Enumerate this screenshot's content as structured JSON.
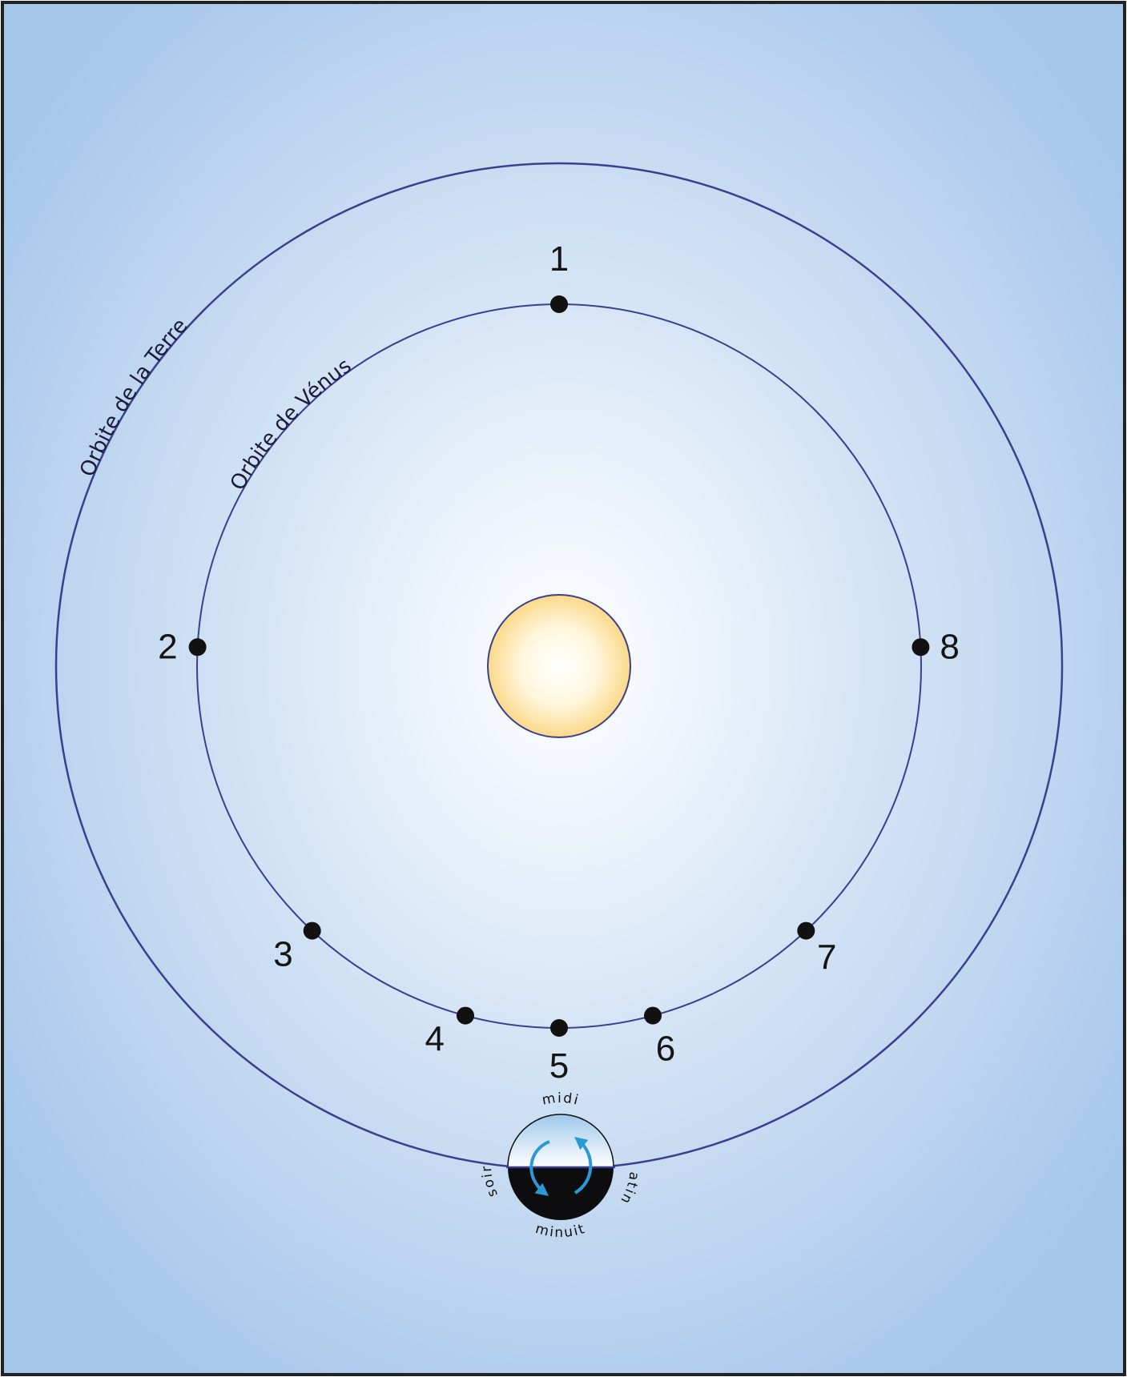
{
  "orbits": {
    "earth_label": "Orbite de la Terre",
    "venus_label": "Orbite de Vénus"
  },
  "venus_positions": [
    {
      "label": "1",
      "angle_deg": 90
    },
    {
      "label": "2",
      "angle_deg": 177
    },
    {
      "label": "3",
      "angle_deg": 227
    },
    {
      "label": "4",
      "angle_deg": 255
    },
    {
      "label": "5",
      "angle_deg": 270
    },
    {
      "label": "6",
      "angle_deg": 285
    },
    {
      "label": "7",
      "angle_deg": 313
    },
    {
      "label": "8",
      "angle_deg": 3
    }
  ],
  "earth": {
    "labels": {
      "noon": "midi",
      "evening": "soir",
      "morning": "matin",
      "midnight": "minuit"
    }
  },
  "colors": {
    "orbit": "#3a3f8f",
    "sun_fill": "#fde9a8",
    "arrow": "#2a9ad6",
    "night": "#0d0d10",
    "background_edge": "#a7c7ea"
  }
}
